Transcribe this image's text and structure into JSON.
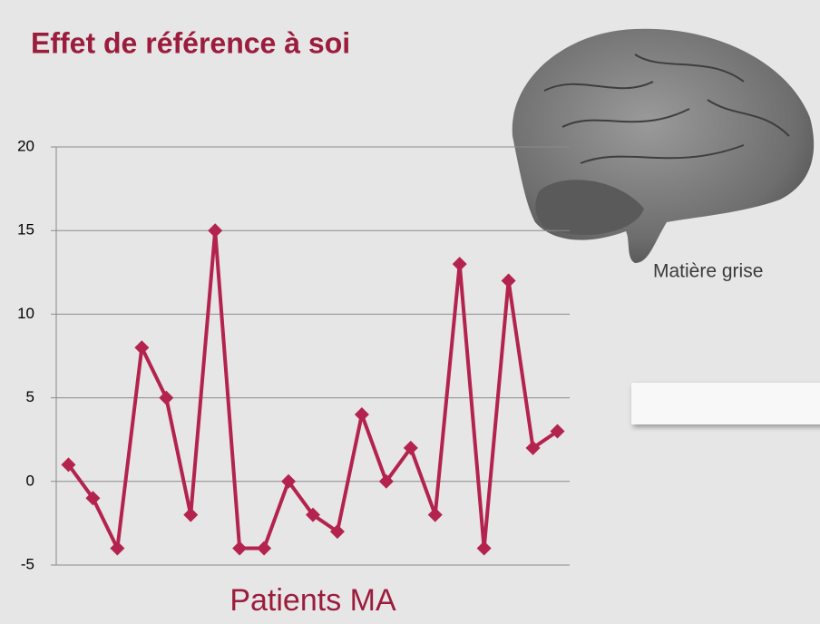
{
  "chart_data": {
    "type": "line",
    "title": "Effet de référence à soi",
    "x_label": "Patients MA",
    "annotation": "Matière grise",
    "categories": [
      null,
      null,
      null,
      null,
      null,
      null,
      null,
      null,
      null,
      null,
      null,
      null,
      null,
      null,
      null,
      null,
      null,
      null,
      null,
      null,
      null
    ],
    "series": [
      {
        "name": null,
        "color": "#b3234e",
        "values": [
          1,
          -1,
          -4,
          8,
          5,
          -2,
          15,
          -4,
          -4,
          0,
          -2,
          -3,
          4,
          0,
          2,
          -2,
          13,
          -4,
          12,
          2,
          3
        ]
      }
    ],
    "ylim": [
      -5,
      20
    ],
    "yticks": [
      -5,
      0,
      5,
      10,
      15,
      20
    ],
    "grid": true
  }
}
